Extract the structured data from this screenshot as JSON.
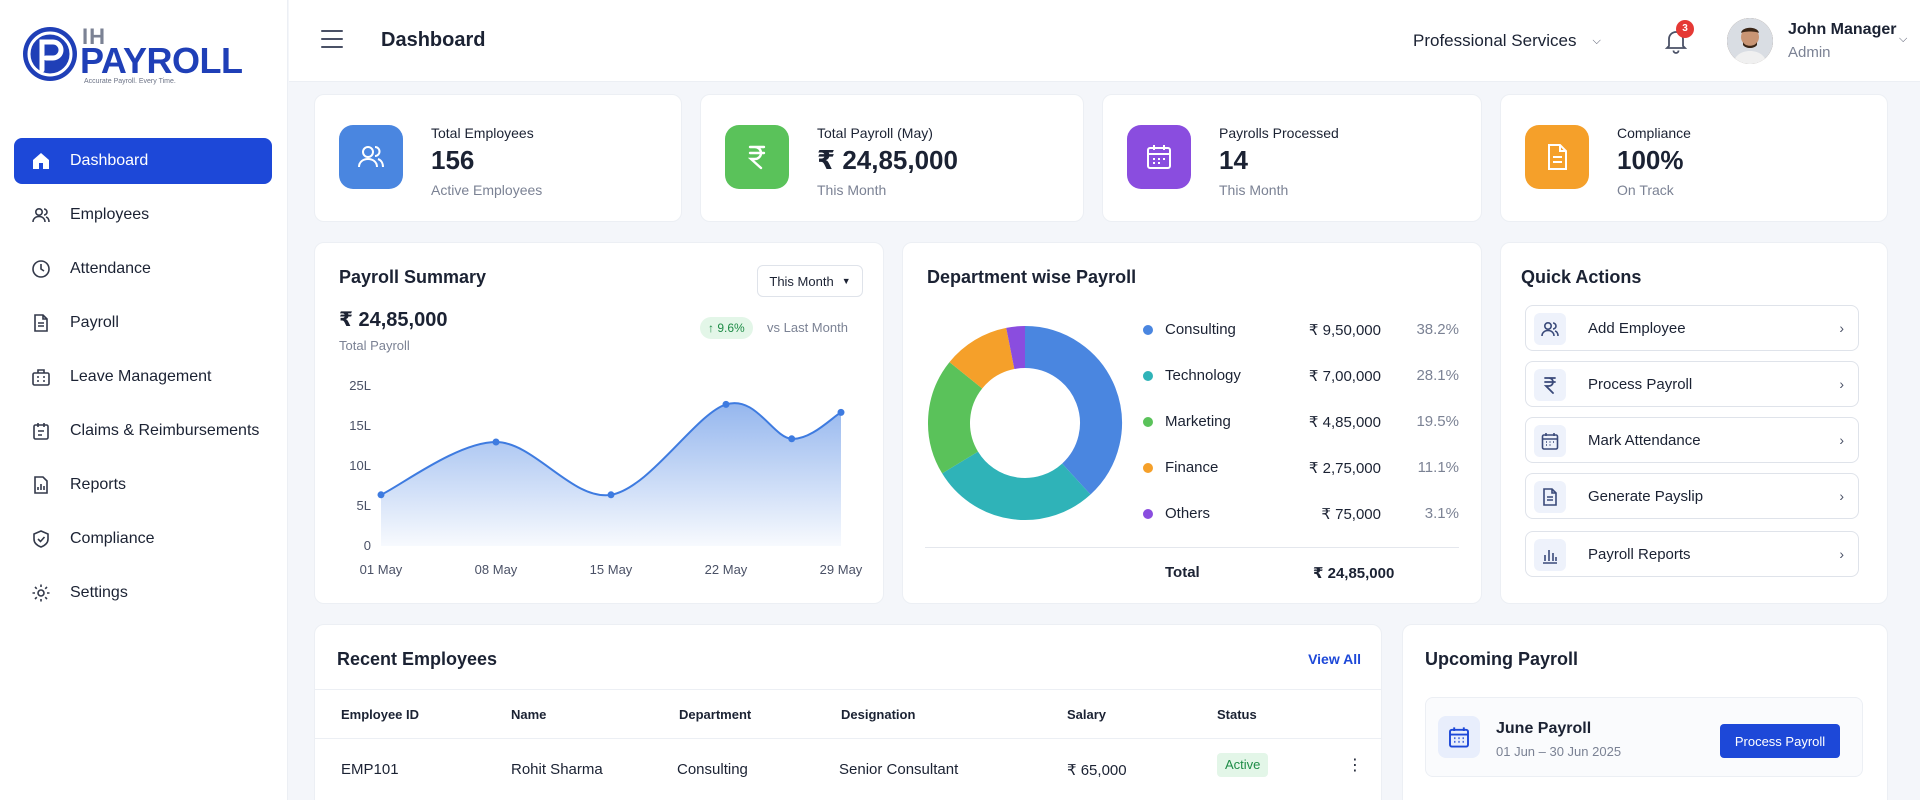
{
  "brand": {
    "ih": "IH",
    "name": "PAYROLL",
    "tagline": "Accurate Payroll. Every Time."
  },
  "sidebar": {
    "items": [
      {
        "label": "Dashboard",
        "icon": "home-icon",
        "active": true
      },
      {
        "label": "Employees",
        "icon": "users-icon"
      },
      {
        "label": "Attendance",
        "icon": "clock-icon"
      },
      {
        "label": "Payroll",
        "icon": "document-icon"
      },
      {
        "label": "Leave Management",
        "icon": "calendar-briefcase-icon"
      },
      {
        "label": "Claims & Reimbursements",
        "icon": "receipt-icon"
      },
      {
        "label": "Reports",
        "icon": "report-icon"
      },
      {
        "label": "Compliance",
        "icon": "shield-check-icon"
      },
      {
        "label": "Settings",
        "icon": "gear-icon"
      }
    ]
  },
  "header": {
    "title": "Dashboard",
    "company": "Professional Services",
    "notifications": "3",
    "user": {
      "name": "John Manager",
      "role": "Admin"
    }
  },
  "stats": [
    {
      "label": "Total Employees",
      "value": "156",
      "sub": "Active Employees",
      "color": "#4a86e0",
      "icon": "users-icon"
    },
    {
      "label": "Total Payroll (May)",
      "value": "₹ 24,85,000",
      "sub": "This Month",
      "color": "#5ac25a",
      "icon": "rupee-icon"
    },
    {
      "label": "Payrolls Processed",
      "value": "14",
      "sub": "This Month",
      "color": "#8a4ddf",
      "icon": "calendar-icon"
    },
    {
      "label": "Compliance",
      "value": "100%",
      "sub": "On Track",
      "color": "#f5a02a",
      "icon": "document-icon"
    }
  ],
  "payroll_summary": {
    "title": "Payroll Summary",
    "period": "This Month",
    "amount": "₹ 24,85,000",
    "amount_label": "Total Payroll",
    "trend": "↑ 9.6%",
    "trend_vs": "vs Last Month"
  },
  "department": {
    "title": "Department wise Payroll",
    "rows": [
      {
        "name": "Consulting",
        "amount": "₹ 9,50,000",
        "pct": "38.2%",
        "color": "#4a86e0"
      },
      {
        "name": "Technology",
        "amount": "₹ 7,00,000",
        "pct": "28.1%",
        "color": "#2fb3b8"
      },
      {
        "name": "Marketing",
        "amount": "₹ 4,85,000",
        "pct": "19.5%",
        "color": "#5ac25a"
      },
      {
        "name": "Finance",
        "amount": "₹ 2,75,000",
        "pct": "11.1%",
        "color": "#f5a02a"
      },
      {
        "name": "Others",
        "amount": "₹ 75,000",
        "pct": "3.1%",
        "color": "#8a4ddf"
      }
    ],
    "total_label": "Total",
    "total_amount": "₹ 24,85,000"
  },
  "quick_actions": {
    "title": "Quick Actions",
    "items": [
      {
        "label": "Add Employee",
        "icon": "add-user-icon"
      },
      {
        "label": "Process Payroll",
        "icon": "rupee-icon"
      },
      {
        "label": "Mark Attendance",
        "icon": "calendar-icon"
      },
      {
        "label": "Generate Payslip",
        "icon": "document-icon"
      },
      {
        "label": "Payroll Reports",
        "icon": "bar-chart-icon"
      }
    ]
  },
  "recent_employees": {
    "title": "Recent Employees",
    "view_all": "View All",
    "columns": [
      "Employee ID",
      "Name",
      "Department",
      "Designation",
      "Salary",
      "Status"
    ],
    "rows": [
      {
        "id": "EMP101",
        "name": "Rohit Sharma",
        "department": "Consulting",
        "designation": "Senior Consultant",
        "salary": "₹ 65,000",
        "status": "Active"
      }
    ]
  },
  "upcoming_payroll": {
    "title": "Upcoming Payroll",
    "name": "June Payroll",
    "range": "01 Jun – 30 Jun 2025",
    "button": "Process Payroll"
  },
  "chart_data": [
    {
      "type": "area",
      "x": [
        "01 May",
        "08 May",
        "15 May",
        "22 May",
        "29 May"
      ],
      "xticks": [
        "01 May",
        "08 May",
        "15 May",
        "22 May",
        "29 May"
      ],
      "yticks": [
        "0",
        "5L",
        "10L",
        "15L",
        "25L"
      ],
      "points": [
        {
          "x": 1,
          "y": 6.4
        },
        {
          "x": 8,
          "y": 13
        },
        {
          "x": 15,
          "y": 6.4
        },
        {
          "x": 22,
          "y": 20.4
        },
        {
          "x": 26,
          "y": 13.4
        },
        {
          "x": 29,
          "y": 18.4
        }
      ],
      "ylim": [
        0,
        25
      ],
      "color": "#3e7be0"
    },
    {
      "type": "pie",
      "donut": true,
      "labels": [
        "Consulting",
        "Technology",
        "Marketing",
        "Finance",
        "Others"
      ],
      "values": [
        38.2,
        28.1,
        19.5,
        11.1,
        3.1
      ],
      "colors": [
        "#4a86e0",
        "#2fb3b8",
        "#5ac25a",
        "#f5a02a",
        "#8a4ddf"
      ]
    }
  ]
}
